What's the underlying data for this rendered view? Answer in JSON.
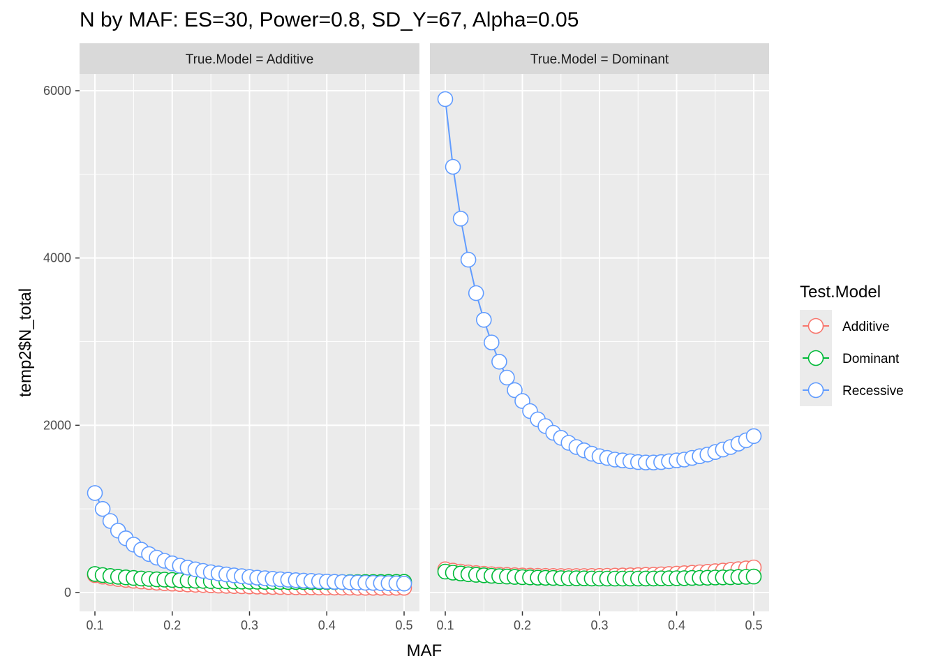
{
  "chart_data": {
    "type": "line",
    "title": "N by MAF: ES=30, Power=0.8, SD_Y=67, Alpha=0.05",
    "xlabel": "MAF",
    "ylabel": "temp2$N_total",
    "xlim": [
      0.1,
      0.5
    ],
    "ylim": [
      0,
      6000
    ],
    "x_ticks": [
      "0.1",
      "0.2",
      "0.3",
      "0.4",
      "0.5"
    ],
    "y_ticks": [
      "0",
      "2000",
      "4000",
      "6000"
    ],
    "grid": true,
    "legend": {
      "title": "Test.Model",
      "position": "right",
      "entries": [
        "Additive",
        "Dominant",
        "Recessive"
      ]
    },
    "colors": {
      "Additive": "#F8766D",
      "Dominant": "#00BA38",
      "Recessive": "#619CFF"
    },
    "x": [
      0.1,
      0.11,
      0.12,
      0.13,
      0.14,
      0.15,
      0.16,
      0.17,
      0.18,
      0.19,
      0.2,
      0.21,
      0.22,
      0.23,
      0.24,
      0.25,
      0.26,
      0.27,
      0.28,
      0.29,
      0.3,
      0.31,
      0.32,
      0.33,
      0.34,
      0.35,
      0.36,
      0.37,
      0.38,
      0.39,
      0.4,
      0.41,
      0.42,
      0.43,
      0.44,
      0.45,
      0.46,
      0.47,
      0.48,
      0.49,
      0.5
    ],
    "panels": [
      {
        "strip": "True.Model = Additive",
        "series": [
          {
            "name": "Additive",
            "values": [
              208,
              190,
              175,
              162,
              151,
              141,
              133,
              125,
              118,
              112,
              107,
              102,
              97,
              93,
              89,
              86,
              83,
              80,
              77,
              75,
              73,
              71,
              69,
              67,
              66,
              64,
              63,
              62,
              61,
              60,
              59,
              59,
              58,
              58,
              57,
              57,
              57,
              57,
              57,
              57,
              57
            ]
          },
          {
            "name": "Dominant",
            "values": [
              222,
              209,
              198,
              189,
              181,
              174,
              168,
              163,
              158,
              154,
              150,
              147,
              144,
              141,
              139,
              137,
              135,
              134,
              132,
              131,
              130,
              129,
              128,
              127,
              127,
              126,
              126,
              125,
              125,
              125,
              125,
              125,
              125,
              125,
              125,
              126,
              126,
              126,
              127,
              127,
              128
            ]
          },
          {
            "name": "Recessive",
            "values": [
              1190,
              1000,
              855,
              740,
              648,
              573,
              512,
              460,
              417,
              380,
              349,
              321,
              298,
              277,
              259,
              243,
              229,
              216,
              205,
              195,
              186,
              178,
              171,
              164,
              158,
              153,
              148,
              143,
              139,
              135,
              131,
              128,
              125,
              122,
              119,
              117,
              115,
              113,
              111,
              109,
              107
            ]
          }
        ]
      },
      {
        "strip": "True.Model = Dominant",
        "series": [
          {
            "name": "Additive",
            "values": [
              278,
              262,
              250,
              240,
              232,
              225,
              219,
              214,
              210,
              207,
              204,
              202,
              200,
              199,
              198,
              197,
              197,
              197,
              197,
              198,
              199,
              200,
              202,
              204,
              206,
              208,
              211,
              214,
              218,
              222,
              226,
              231,
              236,
              242,
              248,
              255,
              262,
              270,
              279,
              289,
              300
            ]
          },
          {
            "name": "Dominant",
            "values": [
              250,
              238,
              228,
              219,
              212,
              206,
              200,
              195,
              191,
              187,
              184,
              181,
              178,
              176,
              174,
              172,
              171,
              170,
              169,
              168,
              167,
              167,
              167,
              167,
              167,
              167,
              168,
              168,
              169,
              170,
              171,
              172,
              174,
              175,
              177,
              179,
              181,
              183,
              186,
              188,
              191
            ]
          },
          {
            "name": "Recessive",
            "values": [
              5900,
              5090,
              4470,
              3980,
              3580,
              3260,
              2990,
              2760,
              2570,
              2420,
              2290,
              2170,
              2070,
              1990,
              1910,
              1850,
              1790,
              1740,
              1700,
              1660,
              1630,
              1610,
              1590,
              1580,
              1570,
              1560,
              1555,
              1555,
              1560,
              1570,
              1580,
              1590,
              1610,
              1630,
              1650,
              1680,
              1710,
              1740,
              1780,
              1820,
              1870
            ]
          }
        ]
      }
    ]
  }
}
